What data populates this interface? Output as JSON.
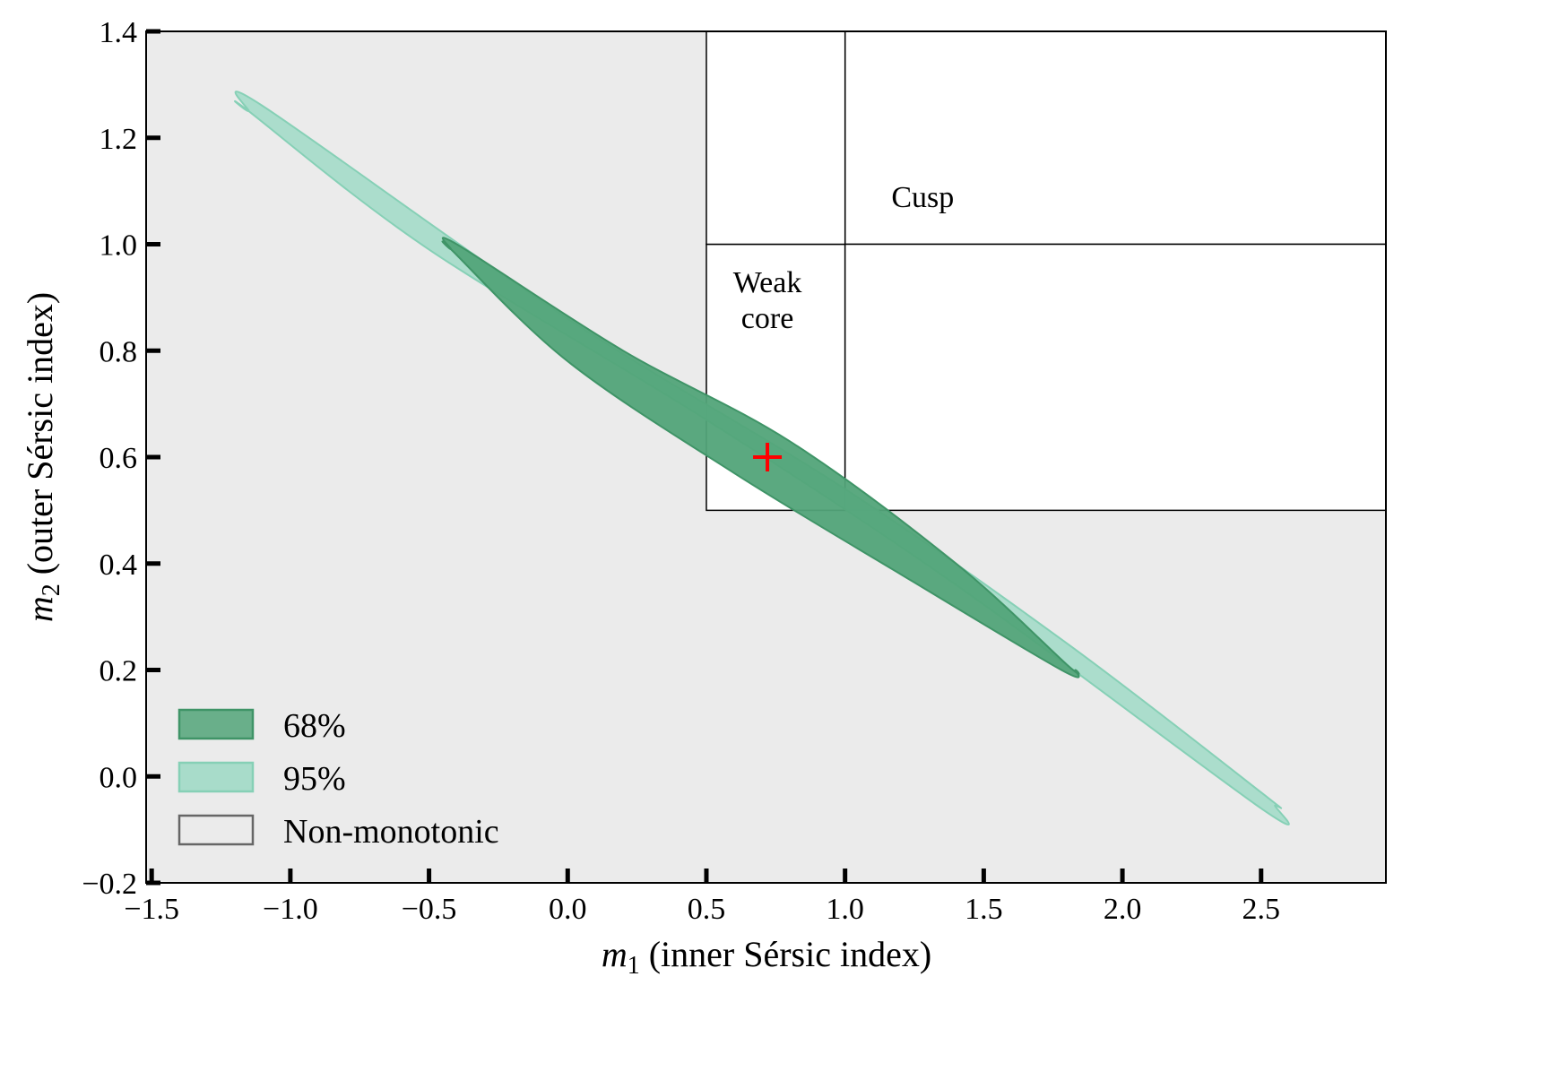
{
  "chart_data": {
    "type": "contour",
    "xlabel": {
      "symbol": "m",
      "sub": "1",
      "text": " (inner Sérsic index)"
    },
    "ylabel": {
      "symbol": "m",
      "sub": "2",
      "text": " (outer Sérsic index)"
    },
    "xlim": [
      -1.52,
      2.95
    ],
    "ylim": [
      -0.2,
      1.4
    ],
    "xticks": [
      -1.5,
      -1.0,
      -0.5,
      0.0,
      0.5,
      1.0,
      1.5,
      2.0,
      2.5
    ],
    "xtick_labels": [
      "−1.5",
      "−1.0",
      "−0.5",
      "0.0",
      "0.5",
      "1.0",
      "1.5",
      "2.0",
      "2.5"
    ],
    "yticks": [
      -0.2,
      0.0,
      0.2,
      0.4,
      0.6,
      0.8,
      1.0,
      1.2,
      1.4
    ],
    "ytick_labels": [
      "−0.2",
      "0.0",
      "0.2",
      "0.4",
      "0.6",
      "0.8",
      "1.0",
      "1.2",
      "1.4"
    ],
    "background_color": "#ebebeb",
    "regions": [
      {
        "name": "Cusp",
        "label": "Cusp",
        "x": [
          1.0,
          2.95
        ],
        "y": [
          1.0,
          1.4
        ],
        "label_at": [
          1.28,
          1.07
        ]
      },
      {
        "name": "Weak core",
        "label_lines": [
          "Weak",
          "core"
        ],
        "x": [
          0.5,
          1.0
        ],
        "y": [
          0.5,
          1.0
        ],
        "label_at": [
          0.72,
          0.91
        ]
      },
      {
        "name": "upper-left",
        "x": [
          0.5,
          1.0
        ],
        "y": [
          1.0,
          1.4
        ]
      },
      {
        "name": "right",
        "x": [
          1.0,
          2.95
        ],
        "y": [
          0.5,
          1.0
        ]
      }
    ],
    "contours": [
      {
        "name": "95%",
        "color": "#a8dcca",
        "edge_color": "#86d0b6",
        "points": [
          [
            -1.15,
            1.25
          ],
          [
            -1.1,
            1.26
          ],
          [
            0.0,
            0.86
          ],
          [
            1.0,
            0.54
          ],
          [
            1.8,
            0.25
          ],
          [
            2.5,
            -0.03
          ],
          [
            2.55,
            -0.055
          ],
          [
            2.5,
            -0.06
          ],
          [
            1.4,
            0.36
          ],
          [
            0.5,
            0.67
          ],
          [
            -0.5,
            0.99
          ],
          [
            -1.15,
            1.25
          ]
        ]
      },
      {
        "name": "68%",
        "color": "#52a479",
        "edge_color": "#3f9467",
        "points": [
          [
            -0.42,
            0.99
          ],
          [
            -0.4,
            1.0
          ],
          [
            0.2,
            0.8
          ],
          [
            0.8,
            0.63
          ],
          [
            1.4,
            0.4
          ],
          [
            1.8,
            0.21
          ],
          [
            1.83,
            0.2
          ],
          [
            1.78,
            0.2
          ],
          [
            1.2,
            0.38
          ],
          [
            0.6,
            0.57
          ],
          [
            0.0,
            0.78
          ],
          [
            -0.42,
            0.99
          ]
        ]
      }
    ],
    "best_fit": {
      "x": 0.72,
      "y": 0.6,
      "color": "#ff0000",
      "marker": "+"
    },
    "legend": {
      "placement": "lower-left",
      "items": [
        {
          "label": "68%",
          "fill": "#52a479",
          "stroke": "#3f9467",
          "opacity": 0.85
        },
        {
          "label": "95%",
          "fill": "#a8dcca",
          "stroke": "#86d0b6",
          "opacity": 1.0
        },
        {
          "label": "Non-monotonic",
          "fill": "#ebebeb",
          "stroke": "#666666",
          "opacity": 1.0
        }
      ]
    }
  }
}
